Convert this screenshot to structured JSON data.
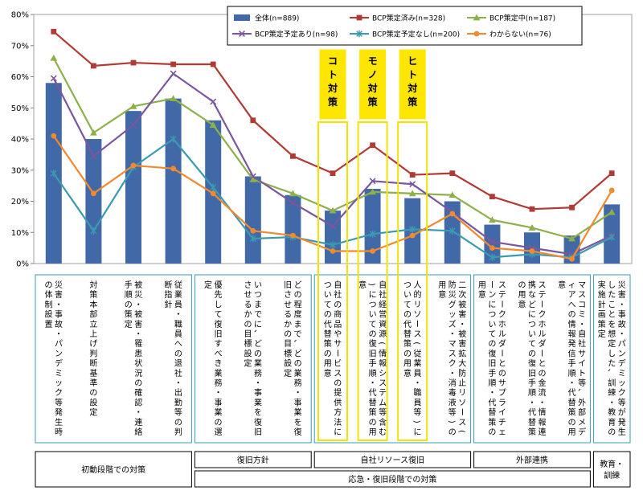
{
  "chart_data": {
    "type": "bar",
    "ylim": [
      0,
      80
    ],
    "ytick_step": 10,
    "ytick_suffix": "%",
    "categories": [
      "災害・事故・パンデミック等発生時の体制設置",
      "対策本部立上げ判断基準の設定",
      "被災・被害・罹患状況の確認・連絡手順の策定",
      "従業員・職員への退社・出勤等の判断指針",
      "優先して復旧すべき業務・事業の選定",
      "いつまでに、どの業務・事業を復旧させるかの目標設定",
      "どの程度まで、どの業務・事業を復旧させるかの目標設定",
      "自社の商品やサービスの提供方法についての代替策の用意",
      "自社経営資源(情報システム等含む)についての復旧手順・代替策の用意",
      "人的リソース(従業員・職員等)についての代替策の用意",
      "二次被害・被害拡大防止リソース(防災グッズ・マスク・消毒液等)の用意",
      "ステークホルダーとのサプライチェーンについての復旧手順・代替策の用意",
      "ステークホルダーとの金流・情報連携などについての復旧手順・代替策の用意",
      "マスコミ・自社サイト等、外部メディアへの情報発信手順・代替策の用意",
      "災害・事故・パンデミック等が発生したことを想定した、訓練・教育の実施計画策定"
    ],
    "series": [
      {
        "name": "全体(n=889)",
        "kind": "bar",
        "color": "#4169a8",
        "values": [
          58,
          40,
          49,
          53,
          46,
          28,
          22,
          17,
          24,
          21,
          20,
          12.5,
          10,
          9,
          19
        ]
      },
      {
        "name": "BCP策定済み(n=328)",
        "kind": "line",
        "marker": "square",
        "color": "#b23a35",
        "values": [
          74.5,
          63.5,
          64.5,
          64,
          64,
          46,
          34.5,
          29,
          38,
          28.5,
          29,
          21.5,
          17.5,
          18,
          29
        ]
      },
      {
        "name": "BCP策定中(n=187)",
        "kind": "line",
        "marker": "triangle",
        "color": "#8db04a",
        "values": [
          66,
          42,
          50.5,
          53,
          44.5,
          27,
          22.5,
          17,
          23,
          22.5,
          22,
          14,
          11.5,
          8,
          16.5
        ]
      },
      {
        "name": "BCP策定予定あり(n=98)",
        "kind": "line",
        "marker": "x",
        "color": "#7a56a0",
        "values": [
          59.5,
          34.5,
          44.5,
          61,
          52,
          28,
          19.5,
          12,
          26.5,
          25.5,
          16.5,
          7,
          5,
          3,
          9
        ]
      },
      {
        "name": "BCP策定予定なし(n=200)",
        "kind": "line",
        "marker": "star",
        "color": "#3a9bb0",
        "values": [
          29,
          10.5,
          31,
          40,
          24.5,
          8,
          8.5,
          6,
          9.5,
          11,
          10.5,
          2,
          3,
          2,
          8.5
        ]
      },
      {
        "name": "わからない(n=76)",
        "kind": "line",
        "marker": "circle",
        "color": "#f08a30",
        "values": [
          41,
          22.5,
          31.5,
          30.5,
          22.5,
          10.5,
          9,
          4,
          4,
          9,
          16,
          5,
          4,
          1.5,
          23.5
        ]
      }
    ],
    "emphasis_labels": [
      "コト対策",
      "モノ対策",
      "ヒト対策"
    ],
    "groups_row1": [
      {
        "label": "初動段階での対策",
        "from": 0,
        "to": 3
      },
      {
        "label": "復旧方針",
        "from": 4,
        "to": 6
      },
      {
        "label": "自社リソース復旧",
        "from": 7,
        "to": 10
      },
      {
        "label": "外部連携",
        "from": 11,
        "to": 13
      },
      {
        "label": "教育・訓練",
        "from": 14,
        "to": 14
      }
    ],
    "groups_row2": [
      {
        "label": "応急・復旧段階での対策",
        "from": 4,
        "to": 13
      }
    ],
    "legend_position": "top-right",
    "grid": false
  }
}
